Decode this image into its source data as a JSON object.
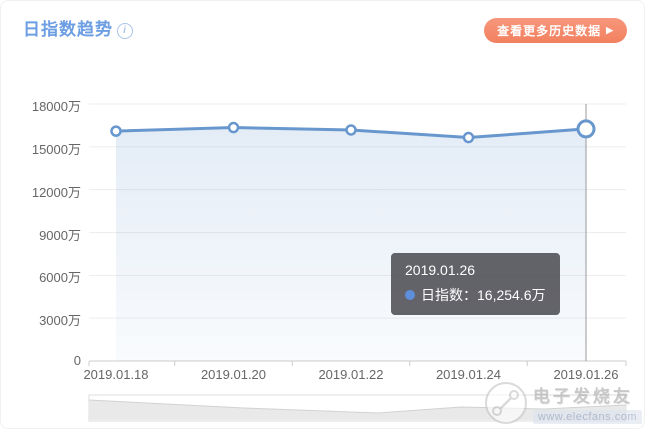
{
  "header": {
    "title": "日指数趋势",
    "info_icon": "i",
    "more_button": {
      "label": "查看更多历史数据",
      "arrow": "▶"
    }
  },
  "chart_data": {
    "type": "line",
    "title": "日指数趋势",
    "x": [
      "2019.01.18",
      "2019.01.20",
      "2019.01.22",
      "2019.01.24",
      "2019.01.26"
    ],
    "series": [
      {
        "name": "日指数",
        "values": [
          16100,
          16350,
          16180,
          15650,
          16254.6
        ]
      }
    ],
    "unit": "万",
    "y_ticks": [
      "18000万",
      "15000万",
      "12000万",
      "9000万",
      "6000万",
      "3000万",
      "0"
    ],
    "ylim": [
      0,
      18000
    ],
    "grid": true,
    "legend_position": "none",
    "hover_index": 4,
    "navigator": true
  },
  "tooltip": {
    "date": "2019.01.26",
    "series_label": "日指数",
    "separator": "：",
    "value": "16,254.6万"
  },
  "watermark": {
    "brand": "电子发烧友",
    "url": "www.elecfans.com"
  },
  "colors": {
    "title_blue": "#6d9ee3",
    "button_orange": "#f2805f",
    "line_blue": "#6897ce",
    "marker_fill": "#ffffff",
    "area_top": "rgba(104,151,206,0.18)",
    "area_bottom": "rgba(104,151,206,0.04)",
    "gridline": "#ededed",
    "axis_line": "#cccccc",
    "axis_text": "#666666",
    "crosshair": "#999999",
    "tooltip_bg": "rgba(58,58,64,0.78)",
    "tooltip_dot": "#5d8fdd",
    "navigator_fill": "#e9e9e9",
    "navigator_border": "#dddddd"
  }
}
